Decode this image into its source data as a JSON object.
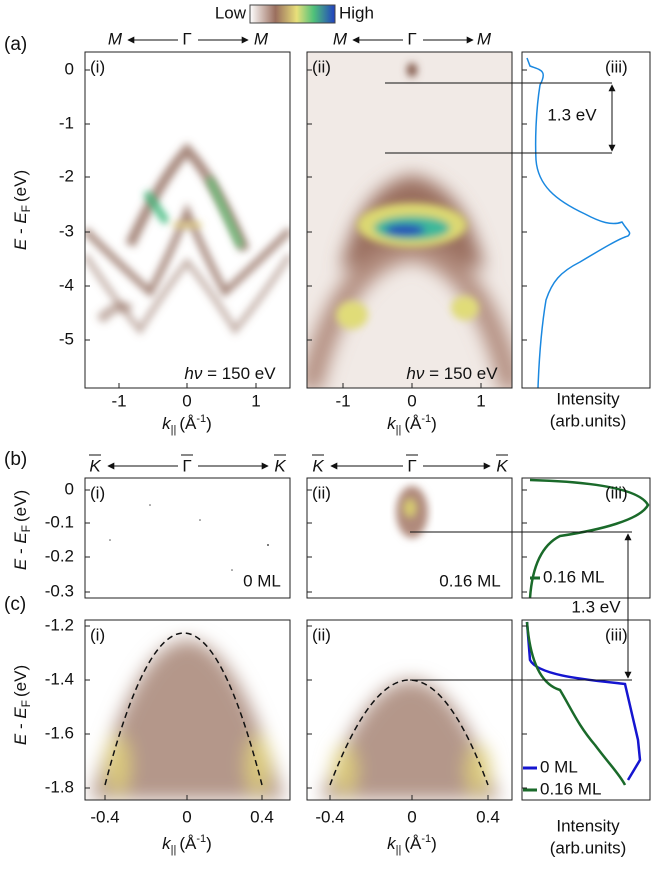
{
  "colorbar": {
    "low": "Low",
    "high": "High"
  },
  "panel_labels": {
    "a": "(a)",
    "b": "(b)",
    "c": "(c)"
  },
  "sub_labels": [
    "(i)",
    "(ii)",
    "(iii)"
  ],
  "y_label": {
    "symbol_1": "E",
    "minus": " - ",
    "symbol_2": "E",
    "subscript": "F",
    "unit": "(eV)"
  },
  "x_label": {
    "symbol": "k",
    "subscript": "||",
    "unit": "(Å",
    "superscript": "-1",
    "close": ")"
  },
  "intensity_label": {
    "line_1": "Intensity",
    "line_2": "(arb.units)"
  },
  "row_a": {
    "direction": [
      "M",
      "Γ",
      "M"
    ],
    "yticks": [
      "0",
      "-1",
      "-2",
      "-3",
      "-4",
      "-5"
    ],
    "xticks": [
      "-1",
      "0",
      "1"
    ],
    "photon_energy": {
      "symbol": "hν",
      "text": " = 150 eV"
    },
    "gap": "1.3 eV"
  },
  "row_b": {
    "direction": [
      "K",
      "Γ",
      "K"
    ],
    "yticks": [
      "0",
      "-0.1",
      "-0.2",
      "-0.3"
    ],
    "coverage_i": "0 ML",
    "coverage_ii": "0.16 ML",
    "legend": "0.16 ML"
  },
  "row_c": {
    "yticks": [
      "-1.2",
      "-1.4",
      "-1.6",
      "-1.8"
    ],
    "xticks": [
      "-0.4",
      "0",
      "0.4"
    ],
    "gap": "1.3 eV",
    "legend": [
      "0 ML",
      "0.16 ML"
    ]
  }
}
